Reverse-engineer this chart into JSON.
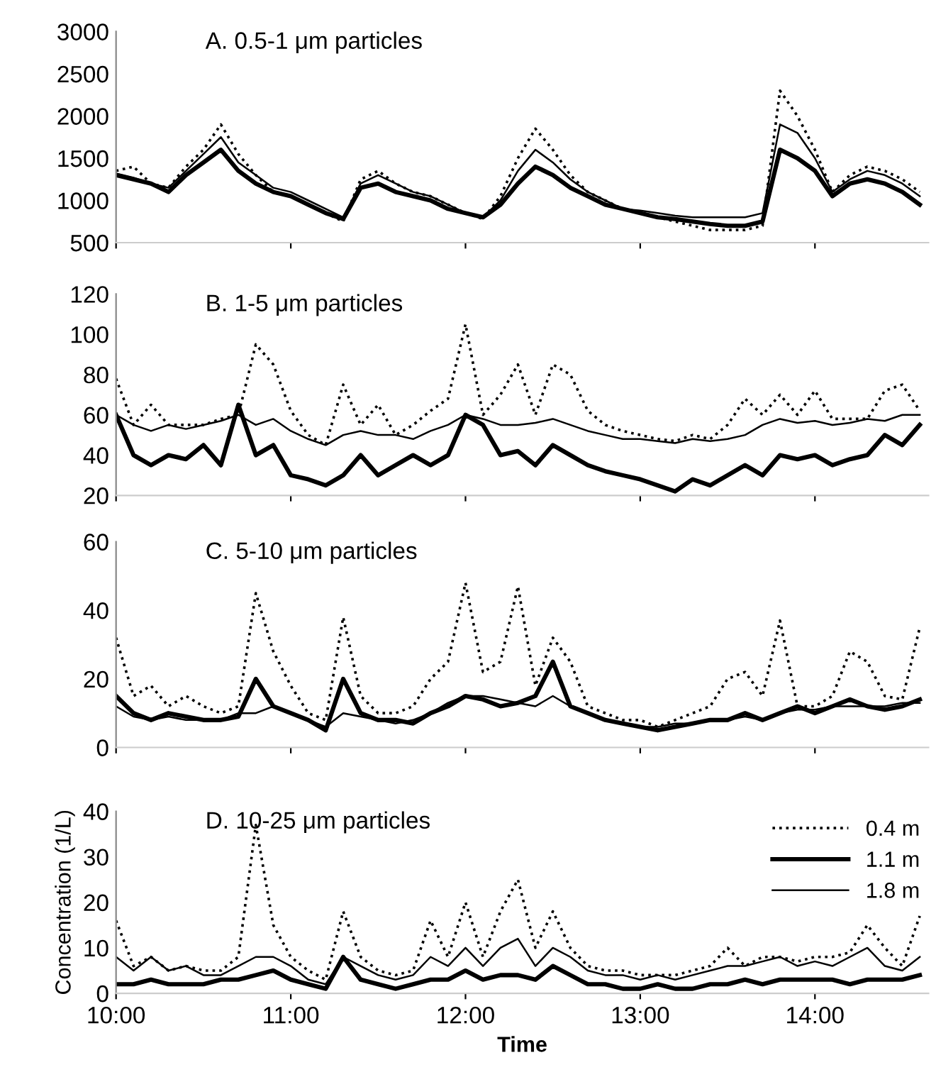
{
  "chart_data": [
    {
      "type": "line",
      "title": "A. 0.5-1 μm particles",
      "x": [
        10.0,
        10.1,
        10.2,
        10.3,
        10.4,
        10.5,
        10.6,
        10.7,
        10.8,
        10.9,
        11.0,
        11.1,
        11.2,
        11.3,
        11.4,
        11.5,
        11.6,
        11.7,
        11.8,
        11.9,
        12.0,
        12.1,
        12.2,
        12.3,
        12.4,
        12.5,
        12.6,
        12.7,
        12.8,
        12.9,
        13.0,
        13.1,
        13.2,
        13.3,
        13.4,
        13.5,
        13.6,
        13.7,
        13.8,
        13.9,
        14.0,
        14.1,
        14.2,
        14.3,
        14.4,
        14.5,
        14.6
      ],
      "xlim": [
        10.0,
        14.65
      ],
      "xticks": [
        {
          "value": 10,
          "label": null
        },
        {
          "value": 11,
          "label": null
        },
        {
          "value": 12,
          "label": null
        },
        {
          "value": 13,
          "label": null
        },
        {
          "value": 14,
          "label": null
        }
      ],
      "ylim": [
        500,
        3000
      ],
      "yticks": [
        500,
        1000,
        1500,
        2000,
        2500,
        3000
      ],
      "tick_labels": "y",
      "series": [
        {
          "color": "#000000",
          "line_style": "dotted",
          "values": [
            1350,
            1400,
            1200,
            1150,
            1400,
            1600,
            1900,
            1550,
            1300,
            1100,
            1050,
            950,
            850,
            750,
            1250,
            1350,
            1200,
            1100,
            1050,
            950,
            850,
            780,
            1050,
            1500,
            1850,
            1600,
            1300,
            1100,
            1000,
            900,
            850,
            800,
            750,
            700,
            650,
            650,
            650,
            700,
            2300,
            2000,
            1600,
            1100,
            1300,
            1400,
            1350,
            1250,
            1100
          ]
        },
        {
          "color": "#000000",
          "line_style": "solid",
          "values": [
            1300,
            1250,
            1200,
            1100,
            1300,
            1450,
            1600,
            1350,
            1200,
            1100,
            1050,
            950,
            850,
            780,
            1150,
            1200,
            1100,
            1050,
            1000,
            900,
            850,
            800,
            950,
            1200,
            1400,
            1300,
            1150,
            1050,
            950,
            900,
            850,
            800,
            780,
            750,
            720,
            700,
            700,
            750,
            1600,
            1500,
            1350,
            1050,
            1200,
            1250,
            1200,
            1100,
            950
          ]
        },
        {
          "color": "#000000",
          "line_style": "solid",
          "values": [
            1320,
            1270,
            1200,
            1150,
            1350,
            1550,
            1750,
            1450,
            1300,
            1150,
            1100,
            1000,
            900,
            800,
            1200,
            1300,
            1200,
            1100,
            1050,
            950,
            850,
            800,
            1000,
            1350,
            1600,
            1450,
            1250,
            1100,
            1000,
            900,
            880,
            850,
            820,
            800,
            800,
            800,
            800,
            850,
            1900,
            1800,
            1500,
            1100,
            1250,
            1350,
            1300,
            1200,
            1050
          ]
        }
      ]
    },
    {
      "type": "line",
      "title": "B. 1-5 μm particles",
      "x": [
        10.0,
        10.1,
        10.2,
        10.3,
        10.4,
        10.5,
        10.6,
        10.7,
        10.8,
        10.9,
        11.0,
        11.1,
        11.2,
        11.3,
        11.4,
        11.5,
        11.6,
        11.7,
        11.8,
        11.9,
        12.0,
        12.1,
        12.2,
        12.3,
        12.4,
        12.5,
        12.6,
        12.7,
        12.8,
        12.9,
        13.0,
        13.1,
        13.2,
        13.3,
        13.4,
        13.5,
        13.6,
        13.7,
        13.8,
        13.9,
        14.0,
        14.1,
        14.2,
        14.3,
        14.4,
        14.5,
        14.6
      ],
      "xlim": [
        10.0,
        14.65
      ],
      "xticks": [
        {
          "value": 10,
          "label": null
        },
        {
          "value": 11,
          "label": null
        },
        {
          "value": 12,
          "label": null
        },
        {
          "value": 13,
          "label": null
        },
        {
          "value": 14,
          "label": null
        }
      ],
      "ylim": [
        20,
        120
      ],
      "yticks": [
        20,
        40,
        60,
        80,
        100,
        120
      ],
      "tick_labels": "y",
      "series": [
        {
          "color": "#000000",
          "line_style": "dotted",
          "values": [
            78,
            55,
            65,
            55,
            55,
            55,
            58,
            60,
            95,
            85,
            62,
            50,
            45,
            75,
            55,
            65,
            50,
            55,
            62,
            68,
            105,
            60,
            70,
            85,
            60,
            85,
            80,
            62,
            55,
            52,
            50,
            48,
            47,
            50,
            48,
            55,
            68,
            60,
            70,
            60,
            72,
            58,
            58,
            58,
            72,
            75,
            62
          ]
        },
        {
          "color": "#000000",
          "line_style": "solid",
          "values": [
            60,
            40,
            35,
            40,
            38,
            45,
            35,
            65,
            40,
            45,
            30,
            28,
            25,
            30,
            40,
            30,
            35,
            40,
            35,
            40,
            60,
            55,
            40,
            42,
            35,
            45,
            40,
            35,
            32,
            30,
            28,
            25,
            22,
            28,
            25,
            30,
            35,
            30,
            40,
            38,
            40,
            35,
            38,
            40,
            50,
            45,
            55
          ]
        },
        {
          "color": "#000000",
          "line_style": "solid",
          "values": [
            60,
            55,
            52,
            55,
            53,
            55,
            57,
            60,
            55,
            58,
            52,
            48,
            45,
            50,
            52,
            50,
            50,
            48,
            52,
            55,
            60,
            58,
            55,
            55,
            56,
            58,
            55,
            52,
            50,
            48,
            48,
            47,
            46,
            48,
            47,
            48,
            50,
            55,
            58,
            56,
            57,
            55,
            56,
            58,
            57,
            60,
            60
          ]
        }
      ]
    },
    {
      "type": "line",
      "title": "C. 5-10 μm particles",
      "x": [
        10.0,
        10.1,
        10.2,
        10.3,
        10.4,
        10.5,
        10.6,
        10.7,
        10.8,
        10.9,
        11.0,
        11.1,
        11.2,
        11.3,
        11.4,
        11.5,
        11.6,
        11.7,
        11.8,
        11.9,
        12.0,
        12.1,
        12.2,
        12.3,
        12.4,
        12.5,
        12.6,
        12.7,
        12.8,
        12.9,
        13.0,
        13.1,
        13.2,
        13.3,
        13.4,
        13.5,
        13.6,
        13.7,
        13.8,
        13.9,
        14.0,
        14.1,
        14.2,
        14.3,
        14.4,
        14.5,
        14.6
      ],
      "xlim": [
        10.0,
        14.65
      ],
      "xticks": [
        {
          "value": 10,
          "label": null
        },
        {
          "value": 11,
          "label": null
        },
        {
          "value": 12,
          "label": null
        },
        {
          "value": 13,
          "label": null
        },
        {
          "value": 14,
          "label": null
        }
      ],
      "ylim": [
        0,
        60
      ],
      "yticks": [
        0,
        20,
        40,
        60
      ],
      "tick_labels": "y",
      "series": [
        {
          "color": "#000000",
          "line_style": "dotted",
          "values": [
            32,
            15,
            18,
            12,
            15,
            12,
            10,
            12,
            45,
            28,
            18,
            10,
            8,
            38,
            15,
            10,
            10,
            12,
            20,
            25,
            48,
            22,
            25,
            47,
            18,
            32,
            25,
            12,
            10,
            8,
            8,
            6,
            8,
            10,
            12,
            20,
            22,
            15,
            37,
            12,
            12,
            15,
            28,
            25,
            15,
            14,
            35
          ]
        },
        {
          "color": "#000000",
          "line_style": "solid",
          "values": [
            15,
            10,
            8,
            10,
            9,
            8,
            8,
            9,
            20,
            12,
            10,
            8,
            5,
            20,
            10,
            8,
            8,
            7,
            10,
            12,
            15,
            14,
            12,
            13,
            15,
            25,
            12,
            10,
            8,
            7,
            6,
            5,
            6,
            7,
            8,
            8,
            10,
            8,
            10,
            12,
            10,
            12,
            14,
            12,
            11,
            12,
            14
          ]
        },
        {
          "color": "#000000",
          "line_style": "solid",
          "values": [
            12,
            9,
            8,
            9,
            8,
            8,
            8,
            10,
            10,
            12,
            10,
            8,
            6,
            10,
            9,
            8,
            7,
            8,
            10,
            13,
            15,
            15,
            14,
            13,
            12,
            15,
            12,
            10,
            8,
            7,
            6,
            6,
            7,
            7,
            8,
            8,
            9,
            8,
            10,
            11,
            11,
            12,
            12,
            12,
            12,
            13,
            13
          ]
        }
      ]
    },
    {
      "type": "line",
      "title": "D. 10-25 μm particles",
      "xlabel": "Time",
      "ylabel": "Concentration (1/L)",
      "legend": "top right",
      "x": [
        10.0,
        10.1,
        10.2,
        10.3,
        10.4,
        10.5,
        10.6,
        10.7,
        10.8,
        10.9,
        11.0,
        11.1,
        11.2,
        11.3,
        11.4,
        11.5,
        11.6,
        11.7,
        11.8,
        11.9,
        12.0,
        12.1,
        12.2,
        12.3,
        12.4,
        12.5,
        12.6,
        12.7,
        12.8,
        12.9,
        13.0,
        13.1,
        13.2,
        13.3,
        13.4,
        13.5,
        13.6,
        13.7,
        13.8,
        13.9,
        14.0,
        14.1,
        14.2,
        14.3,
        14.4,
        14.5,
        14.6
      ],
      "xlim": [
        10.0,
        14.65
      ],
      "xticks": [
        {
          "value": 10,
          "label": "10:00"
        },
        {
          "value": 11,
          "label": "11:00"
        },
        {
          "value": 12,
          "label": "12:00"
        },
        {
          "value": 13,
          "label": "13:00"
        },
        {
          "value": 14,
          "label": "14:00"
        }
      ],
      "ylim": [
        0,
        40
      ],
      "yticks": [
        0,
        10,
        20,
        30,
        40
      ],
      "series": [
        {
          "name": "0.4 m",
          "color": "#000000",
          "line_style": "dotted",
          "values": [
            16,
            6,
            8,
            5,
            6,
            5,
            5,
            8,
            37,
            15,
            8,
            5,
            3,
            18,
            8,
            5,
            4,
            5,
            16,
            8,
            20,
            8,
            18,
            25,
            10,
            18,
            10,
            6,
            5,
            5,
            4,
            4,
            4,
            5,
            6,
            10,
            6,
            8,
            8,
            7,
            8,
            8,
            9,
            15,
            10,
            6,
            17
          ]
        },
        {
          "name": "1.1 m",
          "color": "#000000",
          "line_style": "solid",
          "values": [
            2,
            2,
            3,
            2,
            2,
            2,
            3,
            3,
            4,
            5,
            3,
            2,
            1,
            8,
            3,
            2,
            1,
            2,
            3,
            3,
            5,
            3,
            4,
            4,
            3,
            6,
            4,
            2,
            2,
            1,
            1,
            2,
            1,
            1,
            2,
            2,
            3,
            2,
            3,
            3,
            3,
            3,
            2,
            3,
            3,
            3,
            4
          ]
        },
        {
          "name": "1.8 m",
          "color": "#000000",
          "line_style": "solid",
          "values": [
            8,
            5,
            8,
            5,
            6,
            4,
            4,
            6,
            8,
            8,
            6,
            3,
            2,
            8,
            6,
            4,
            3,
            4,
            8,
            6,
            10,
            6,
            10,
            12,
            6,
            10,
            8,
            5,
            4,
            4,
            3,
            4,
            3,
            4,
            5,
            6,
            6,
            7,
            8,
            6,
            7,
            6,
            8,
            10,
            6,
            5,
            8
          ]
        }
      ]
    }
  ]
}
